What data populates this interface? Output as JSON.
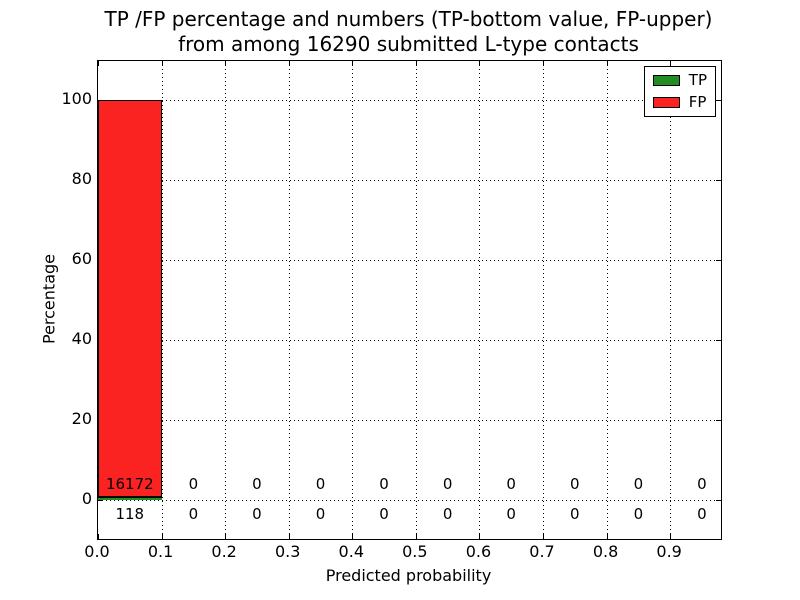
{
  "figure": {
    "background": "#ffffff",
    "text_color": "#000000"
  },
  "chart_data": {
    "type": "bar",
    "stacked": true,
    "title": "TP /FP percentage and numbers (TP-bottom value, FP-upper) from among 16290 submitted L-type contacts",
    "title_line1": "TP /FP percentage and numbers (TP-bottom value, FP-upper)",
    "title_line2": "from among 16290 submitted L-type contacts",
    "xlabel": "Predicted probability",
    "ylabel": "Percentage",
    "total_submitted": 16290,
    "bin_width": 0.1,
    "bin_left_edges": [
      0.0,
      0.1,
      0.2,
      0.3,
      0.4,
      0.5,
      0.6,
      0.7,
      0.8,
      0.9
    ],
    "x_tick_labels": [
      "0.0",
      "0.1",
      "0.2",
      "0.3",
      "0.4",
      "0.5",
      "0.6",
      "0.7",
      "0.8",
      "0.9"
    ],
    "y_tick_labels": [
      "0",
      "20",
      "40",
      "60",
      "80",
      "100"
    ],
    "y_tick_values": [
      0,
      20,
      40,
      60,
      80,
      100
    ],
    "xlim": [
      0,
      0.98
    ],
    "ylim": [
      -9.75,
      109.75
    ],
    "grid_style": "dotted",
    "legend": {
      "position": "upper right"
    },
    "series": [
      {
        "name": "TP",
        "color": "#228b22",
        "counts": [
          118,
          0,
          0,
          0,
          0,
          0,
          0,
          0,
          0,
          0
        ],
        "percents": [
          0.72,
          0,
          0,
          0,
          0,
          0,
          0,
          0,
          0,
          0
        ]
      },
      {
        "name": "FP",
        "color": "#fb2222",
        "counts": [
          16172,
          0,
          0,
          0,
          0,
          0,
          0,
          0,
          0,
          0
        ],
        "percents": [
          99.28,
          0,
          0,
          0,
          0,
          0,
          0,
          0,
          0,
          0
        ]
      }
    ]
  }
}
